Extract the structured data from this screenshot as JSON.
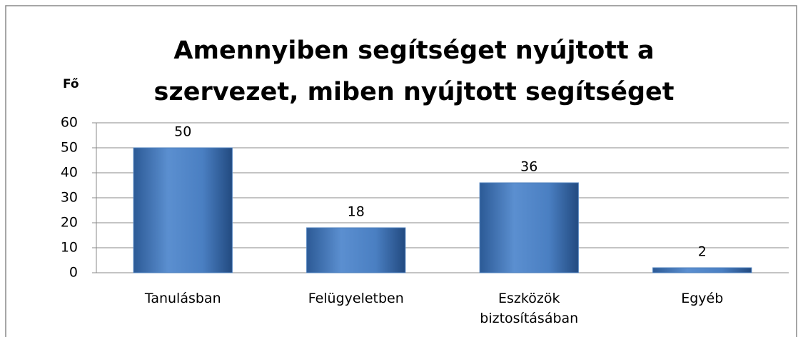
{
  "chart_data": {
    "type": "bar",
    "title": "Amennyiben segítséget nyújtott a szervezet, miben nyújtott segítséget",
    "y_label": "Fő",
    "categories": [
      "Tanulásban",
      "Felügyeletben",
      "Eszközök biztosításában",
      "Egyéb"
    ],
    "values": [
      50,
      18,
      36,
      2
    ],
    "color": "#4f81bd",
    "ylim": [
      0,
      60
    ],
    "yticks": [
      0,
      10,
      20,
      30,
      40,
      50,
      60
    ],
    "grid": true
  }
}
